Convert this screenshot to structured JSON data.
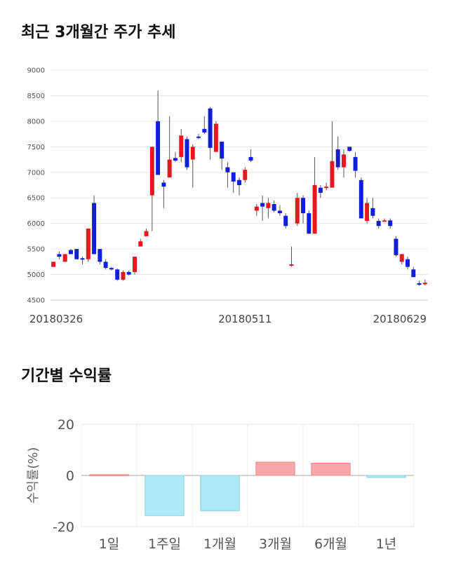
{
  "section1": {
    "title": "최근 3개월간 주가 추세"
  },
  "section2": {
    "title": "기간별 수익률"
  },
  "colors": {
    "up": "#e8171d",
    "down": "#0f1fd9",
    "pos_bar": "#f8a6a8",
    "neg_bar": "#aeeaf6"
  },
  "chart_data": [
    {
      "type": "candlestick",
      "title": "최근 3개월간 주가 추세",
      "ylim": [
        4500,
        9000
      ],
      "yticks": [
        4500,
        5000,
        5500,
        6000,
        6500,
        7000,
        7500,
        8000,
        8500,
        9000
      ],
      "xtick_labels": [
        "20180326",
        "20180511",
        "20180629"
      ],
      "grid": true,
      "candles": [
        [
          5150,
          5250,
          5150,
          5250
        ],
        [
          5400,
          5350,
          5450,
          5300
        ],
        [
          5250,
          5400,
          5400,
          5250
        ],
        [
          5480,
          5400,
          5500,
          5400
        ],
        [
          5500,
          5300,
          5500,
          5300
        ],
        [
          5320,
          5300,
          5350,
          5200
        ],
        [
          5300,
          5900,
          5900,
          5250
        ],
        [
          6400,
          5400,
          6550,
          5400
        ],
        [
          5500,
          5250,
          5500,
          5200
        ],
        [
          5250,
          5130,
          5300,
          5100
        ],
        [
          5130,
          5100,
          5150,
          5080
        ],
        [
          5100,
          4900,
          5120,
          4880
        ],
        [
          4900,
          5050,
          5080,
          4880
        ],
        [
          5050,
          5000,
          5080,
          4980
        ],
        [
          5050,
          5350,
          5350,
          5000
        ],
        [
          5550,
          5650,
          5700,
          5550
        ],
        [
          5750,
          5850,
          5900,
          5750
        ],
        [
          6550,
          7500,
          7500,
          5850
        ],
        [
          8000,
          6950,
          8600,
          6950
        ],
        [
          6800,
          6720,
          6850,
          6300
        ],
        [
          6900,
          7250,
          8100,
          6900
        ],
        [
          7280,
          7230,
          7400,
          7200
        ],
        [
          7300,
          7720,
          7850,
          7200
        ],
        [
          7650,
          7100,
          7700,
          7050
        ],
        [
          7250,
          7500,
          7550,
          6700
        ],
        [
          7700,
          7680,
          7750,
          7650
        ],
        [
          7850,
          7780,
          8100,
          7750
        ],
        [
          8250,
          7480,
          8280,
          7250
        ],
        [
          7400,
          7950,
          8000,
          7400
        ],
        [
          7600,
          7270,
          7600,
          7050
        ],
        [
          7100,
          7000,
          7200,
          6700
        ],
        [
          7000,
          6820,
          7000,
          6600
        ],
        [
          6850,
          6750,
          6900,
          6550
        ],
        [
          6850,
          7050,
          7100,
          6800
        ],
        [
          7300,
          7230,
          7450,
          7200
        ],
        [
          6250,
          6330,
          6380,
          6150
        ],
        [
          6400,
          6330,
          6550,
          6050
        ],
        [
          6300,
          6400,
          6500,
          6100
        ],
        [
          6380,
          6250,
          6450,
          6220
        ],
        [
          6250,
          6200,
          6350,
          6150
        ],
        [
          6150,
          5950,
          6200,
          5900
        ],
        [
          5200,
          5200,
          5550,
          5150
        ],
        [
          6000,
          6500,
          6600,
          5950
        ],
        [
          6500,
          6200,
          6550,
          6000
        ],
        [
          6200,
          5800,
          6250,
          5800
        ],
        [
          5800,
          6750,
          7300,
          5800
        ],
        [
          6700,
          6600,
          6750,
          6500
        ],
        [
          6700,
          6720,
          6800,
          6650
        ],
        [
          6700,
          7220,
          8000,
          6700
        ],
        [
          7450,
          7100,
          7700,
          7050
        ],
        [
          7100,
          7350,
          7450,
          6900
        ],
        [
          7500,
          7420,
          7500,
          7400
        ],
        [
          7300,
          7030,
          7400,
          6900
        ],
        [
          6850,
          6100,
          6900,
          6100
        ],
        [
          6050,
          6400,
          6500,
          6000
        ],
        [
          6300,
          6150,
          6500,
          6100
        ],
        [
          6050,
          5950,
          6100,
          5900
        ],
        [
          6050,
          6060,
          6100,
          6050
        ],
        [
          6060,
          5950,
          6100,
          5900
        ],
        [
          5700,
          5380,
          5750,
          5350
        ],
        [
          5250,
          5400,
          5400,
          5200
        ],
        [
          5300,
          5150,
          5350,
          5100
        ],
        [
          5100,
          4950,
          5150,
          4950
        ],
        [
          4830,
          4800,
          4880,
          4780
        ],
        [
          4810,
          4840,
          4900,
          4790
        ]
      ]
    },
    {
      "type": "bar",
      "title": "기간별 수익률",
      "ylabel": "수익률(%)",
      "categories": [
        "1일",
        "1주일",
        "1개월",
        "3개월",
        "6개월",
        "1년"
      ],
      "values": [
        0.3,
        -15.7,
        -13.8,
        5.2,
        4.8,
        -0.8
      ],
      "ylim": [
        -20,
        20
      ],
      "yticks": [
        -20,
        0,
        20
      ],
      "grid": true
    }
  ]
}
